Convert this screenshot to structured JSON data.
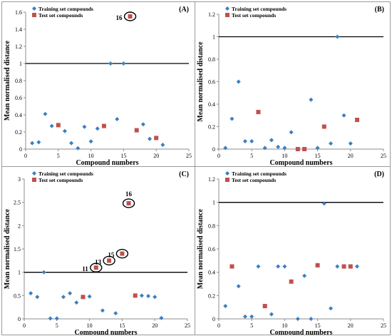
{
  "chart_data": [
    {
      "type": "scatter",
      "panel_label": "(A)",
      "xlabel": "Compound numbers",
      "ylabel": "Mean normalised distance",
      "xlim": [
        0,
        25
      ],
      "ylim": [
        0,
        1.6
      ],
      "xticks": [
        0,
        5,
        10,
        15,
        20,
        25
      ],
      "yticks": [
        0,
        0.2,
        0.4,
        0.6,
        0.8,
        1,
        1.2,
        1.4,
        1.6
      ],
      "yticklabels": [
        "0",
        "0.2",
        "0.4",
        "0.6",
        "0.8",
        "1",
        "1.2",
        "1.4",
        "1.6"
      ],
      "threshold": 1,
      "legend": [
        "Training set compounds",
        "Test set compounds"
      ],
      "series": [
        {
          "name": "Training set compounds",
          "marker": "diamond",
          "color": "#3A7FC1",
          "x": [
            1,
            2,
            3,
            4,
            6,
            7,
            8,
            9,
            10,
            11,
            13,
            14,
            15,
            18,
            19,
            21
          ],
          "y": [
            0.07,
            0.08,
            0.41,
            0.27,
            0.21,
            0.07,
            0.01,
            0.26,
            0.09,
            0.24,
            1.0,
            0.35,
            1.0,
            0.29,
            0.12,
            0.05
          ]
        },
        {
          "name": "Test set compounds",
          "marker": "square",
          "color": "#C0504D",
          "x": [
            5,
            12,
            16,
            17,
            20
          ],
          "y": [
            0.28,
            0.27,
            1.55,
            0.22,
            0.13
          ]
        }
      ],
      "annotations": [
        {
          "text": "16",
          "x": 16,
          "y": 1.55
        }
      ]
    },
    {
      "type": "scatter",
      "panel_label": "(B)",
      "xlabel": "Compound numbers",
      "ylabel": "Mean normalised distance",
      "xlim": [
        0,
        25
      ],
      "ylim": [
        0,
        1.2
      ],
      "xticks": [
        0,
        5,
        10,
        15,
        20,
        25
      ],
      "yticks": [
        0,
        0.2,
        0.4,
        0.6,
        0.8,
        1,
        1.2
      ],
      "yticklabels": [
        "0",
        "0.2",
        "0.4",
        "0.6",
        "0.8",
        "1",
        "1.2"
      ],
      "threshold": 1,
      "legend": [
        "Training set compounds",
        "Test set compounds"
      ],
      "series": [
        {
          "name": "Training set compounds",
          "marker": "diamond",
          "color": "#3A7FC1",
          "x": [
            1,
            2,
            3,
            4,
            5,
            7,
            8,
            9,
            10,
            11,
            14,
            15,
            17,
            18,
            19,
            20
          ],
          "y": [
            0.01,
            0.27,
            0.6,
            0.07,
            0.07,
            0.01,
            0.08,
            0.02,
            0.01,
            0.15,
            0.44,
            0.01,
            0.05,
            1.0,
            0.3,
            0.05
          ]
        },
        {
          "name": "Test set compounds",
          "marker": "square",
          "color": "#C0504D",
          "x": [
            6,
            12,
            13,
            16,
            21
          ],
          "y": [
            0.33,
            0.0,
            0.0,
            0.2,
            0.26
          ]
        }
      ],
      "annotations": []
    },
    {
      "type": "scatter",
      "panel_label": "(C)",
      "xlabel": "Compound numbers",
      "ylabel": "Mean normalised distance",
      "xlim": [
        0,
        25
      ],
      "ylim": [
        0,
        3
      ],
      "xticks": [
        0,
        5,
        10,
        15,
        20,
        25
      ],
      "yticks": [
        0,
        0.5,
        1,
        1.5,
        2,
        2.5,
        3
      ],
      "yticklabels": [
        "0",
        "0.5",
        "1",
        "1.5",
        "2",
        "2.5",
        "3"
      ],
      "threshold": 1,
      "legend": [
        "Training set compounds",
        "Test set compounds"
      ],
      "series": [
        {
          "name": "Training set compounds",
          "marker": "diamond",
          "color": "#3A7FC1",
          "x": [
            1,
            2,
            3,
            4,
            5,
            6,
            7,
            8,
            10,
            12,
            14,
            18,
            19,
            20,
            21
          ],
          "y": [
            0.55,
            0.47,
            1.0,
            0.01,
            0.01,
            0.47,
            0.55,
            0.35,
            0.48,
            0.18,
            0.12,
            0.5,
            0.49,
            0.47,
            0.02
          ]
        },
        {
          "name": "Test set compounds",
          "marker": "square",
          "color": "#C0504D",
          "x": [
            9,
            11,
            13,
            15,
            16,
            17
          ],
          "y": [
            0.47,
            1.1,
            1.25,
            1.4,
            2.48,
            0.5
          ]
        }
      ],
      "annotations": [
        {
          "text": "11",
          "x": 11,
          "y": 1.1
        },
        {
          "text": "13",
          "x": 13,
          "y": 1.25
        },
        {
          "text": "15",
          "x": 15,
          "y": 1.4
        },
        {
          "text": "16",
          "x": 16,
          "y": 2.48
        }
      ]
    },
    {
      "type": "scatter",
      "panel_label": "(D)",
      "xlabel": "Compound numbers",
      "ylabel": "Mean normalised distance",
      "xlim": [
        0,
        25
      ],
      "ylim": [
        0,
        1.2
      ],
      "xticks": [
        0,
        5,
        10,
        15,
        20,
        25
      ],
      "yticks": [
        0,
        0.2,
        0.4,
        0.6,
        0.8,
        1,
        1.2
      ],
      "yticklabels": [
        "0",
        "0.2",
        "0.4",
        "0.6",
        "0.8",
        "1",
        "1.2"
      ],
      "threshold": 1,
      "legend": [
        "Training set compounds",
        "Test set compounds"
      ],
      "series": [
        {
          "name": "Training set compounds",
          "marker": "diamond",
          "color": "#3A7FC1",
          "x": [
            1,
            3,
            4,
            5,
            6,
            8,
            9,
            10,
            12,
            13,
            14,
            16,
            17,
            18,
            21
          ],
          "y": [
            0.11,
            0.28,
            0.02,
            0.02,
            0.45,
            0.04,
            0.45,
            0.45,
            0.0,
            0.37,
            0.0,
            0.99,
            0.09,
            0.45,
            0.45
          ]
        },
        {
          "name": "Test set compounds",
          "marker": "square",
          "color": "#C0504D",
          "x": [
            2,
            7,
            11,
            15,
            19,
            20
          ],
          "y": [
            0.45,
            0.11,
            0.32,
            0.46,
            0.45,
            0.45
          ]
        }
      ],
      "annotations": []
    }
  ]
}
